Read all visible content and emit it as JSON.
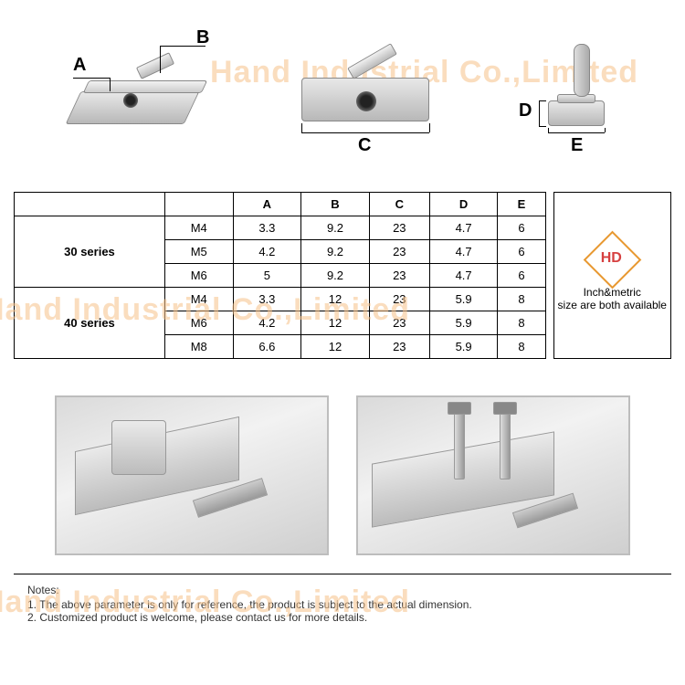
{
  "watermark_text": "Hand Industrial Co.,Limited",
  "diagrams": {
    "labels": {
      "A": "A",
      "B": "B",
      "C": "C",
      "D": "D",
      "E": "E"
    }
  },
  "spec_table": {
    "columns": [
      "",
      "",
      "A",
      "B",
      "C",
      "D",
      "E"
    ],
    "groups": [
      {
        "series": "30 series",
        "rows": [
          [
            "M4",
            "3.3",
            "9.2",
            "23",
            "4.7",
            "6"
          ],
          [
            "M5",
            "4.2",
            "9.2",
            "23",
            "4.7",
            "6"
          ],
          [
            "M6",
            "5",
            "9.2",
            "23",
            "4.7",
            "6"
          ]
        ]
      },
      {
        "series": "40 series",
        "rows": [
          [
            "M4",
            "3.3",
            "12",
            "23",
            "5.9",
            "8"
          ],
          [
            "M6",
            "4.2",
            "12",
            "23",
            "5.9",
            "8"
          ],
          [
            "M8",
            "6.6",
            "12",
            "23",
            "5.9",
            "8"
          ]
        ]
      }
    ],
    "column_fontsize": 13,
    "border_color": "#000000",
    "background_color": "#ffffff"
  },
  "info_box": {
    "line1": "Inch&metric",
    "line2": "size are both available",
    "logo_letters": "HD",
    "logo_border_color": "#e89830",
    "logo_text_color": "#d64040"
  },
  "notes": {
    "title": "Notes:",
    "items": [
      "1. The above parameter is only for reference, the product is subject to the actual dimension.",
      "2. Customized product is welcome, please contact us for more details."
    ]
  },
  "colors": {
    "watermark": "#f7c28a",
    "metal_light": "#e8e8e8",
    "metal_dark": "#b8b8b8",
    "border": "#888888",
    "photo_border": "#bdbdbd"
  }
}
